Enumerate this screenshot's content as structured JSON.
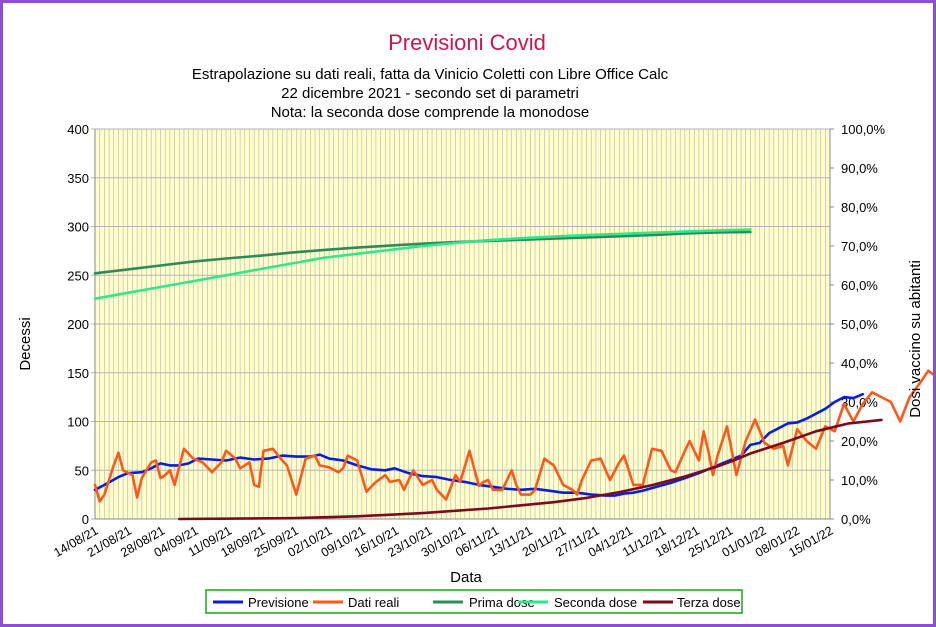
{
  "colors": {
    "frame": "#8b4fd1",
    "plot_bg": "#ffffcc",
    "grid": "#b3b3b3",
    "title": "#c8184f",
    "legend_border": "#1ba51b"
  },
  "chart_data": {
    "type": "line",
    "title": "Previsioni Covid",
    "subtitle_lines": [
      "Estrapolazione su dati reali, fatta da Vinicio Coletti con Libre Office Calc",
      "22 dicembre 2021 - secondo set di parametri",
      "Nota: la seconda dose comprende la monodose"
    ],
    "xlabel": "Data",
    "ylabel": "Decessi",
    "y2label": "Dosi vaccino su abitanti",
    "ylim": [
      0,
      400
    ],
    "y2lim": [
      0,
      100
    ],
    "yticks": [
      "0",
      "50",
      "100",
      "150",
      "200",
      "250",
      "300",
      "350",
      "400"
    ],
    "y2ticks": [
      "0,0%",
      "10,0%",
      "20,0%",
      "30,0%",
      "40,0%",
      "50,0%",
      "60,0%",
      "70,0%",
      "80,0%",
      "90,0%",
      "100,0%"
    ],
    "x_start": "2021-08-14",
    "x_end": "2022-01-18",
    "xticks": [
      "14/08/21",
      "21/08/21",
      "28/08/21",
      "04/09/21",
      "11/09/21",
      "18/09/21",
      "25/09/21",
      "02/10/21",
      "09/10/21",
      "16/10/21",
      "23/10/21",
      "30/10/21",
      "06/11/21",
      "13/11/21",
      "20/11/21",
      "27/11/21",
      "04/12/21",
      "11/12/21",
      "18/12/21",
      "25/12/21",
      "01/01/22",
      "08/01/22",
      "15/01/22"
    ],
    "grid": true,
    "legend_position": "bottom",
    "series": [
      {
        "name": "Previsione",
        "color": "#0a1ed6",
        "axis": "left",
        "points": [
          [
            "2021-08-14",
            30
          ],
          [
            "2021-08-16",
            35
          ],
          [
            "2021-08-19",
            43
          ],
          [
            "2021-08-21",
            47
          ],
          [
            "2021-08-24",
            48
          ],
          [
            "2021-08-26",
            52
          ],
          [
            "2021-08-28",
            57
          ],
          [
            "2021-08-30",
            55
          ],
          [
            "2021-09-01",
            55
          ],
          [
            "2021-09-03",
            57
          ],
          [
            "2021-09-05",
            62
          ],
          [
            "2021-09-08",
            61
          ],
          [
            "2021-09-11",
            60
          ],
          [
            "2021-09-14",
            63
          ],
          [
            "2021-09-17",
            61
          ],
          [
            "2021-09-20",
            62
          ],
          [
            "2021-09-23",
            65
          ],
          [
            "2021-09-26",
            64
          ],
          [
            "2021-09-29",
            64
          ],
          [
            "2021-10-01",
            66
          ],
          [
            "2021-10-03",
            62
          ],
          [
            "2021-10-06",
            60
          ],
          [
            "2021-10-09",
            55
          ],
          [
            "2021-10-12",
            51
          ],
          [
            "2021-10-15",
            50
          ],
          [
            "2021-10-17",
            52
          ],
          [
            "2021-10-20",
            47
          ],
          [
            "2021-10-23",
            44
          ],
          [
            "2021-10-26",
            43
          ],
          [
            "2021-10-29",
            40
          ],
          [
            "2021-11-01",
            38
          ],
          [
            "2021-11-04",
            35
          ],
          [
            "2021-11-07",
            33
          ],
          [
            "2021-11-10",
            31
          ],
          [
            "2021-11-13",
            30
          ],
          [
            "2021-11-16",
            31
          ],
          [
            "2021-11-19",
            29
          ],
          [
            "2021-11-22",
            27
          ],
          [
            "2021-11-25",
            27
          ],
          [
            "2021-11-28",
            25
          ],
          [
            "2021-12-01",
            24
          ],
          [
            "2021-12-03",
            24
          ],
          [
            "2021-12-05",
            26
          ],
          [
            "2021-12-07",
            27
          ],
          [
            "2021-12-09",
            29
          ],
          [
            "2021-12-12",
            33
          ],
          [
            "2021-12-15",
            37
          ],
          [
            "2021-12-18",
            42
          ],
          [
            "2021-12-21",
            47
          ],
          [
            "2021-12-24",
            53
          ],
          [
            "2021-12-27",
            59
          ],
          [
            "2021-12-30",
            65
          ],
          [
            "2022-01-01",
            76
          ],
          [
            "2022-01-03",
            78
          ],
          [
            "2022-01-05",
            88
          ],
          [
            "2022-01-07",
            93
          ],
          [
            "2022-01-09",
            98
          ],
          [
            "2022-01-11",
            99
          ],
          [
            "2022-01-13",
            103
          ],
          [
            "2022-01-15",
            108
          ],
          [
            "2022-01-17",
            113
          ],
          [
            "2022-01-19",
            120
          ],
          [
            "2022-01-21",
            125
          ],
          [
            "2022-01-23",
            124
          ],
          [
            "2022-01-25",
            128
          ]
        ]
      },
      {
        "name": "Dati reali",
        "color": "#ff5a19",
        "axis": "left",
        "points": [
          [
            "2021-08-14",
            35
          ],
          [
            "2021-08-15",
            18
          ],
          [
            "2021-08-16",
            25
          ],
          [
            "2021-08-18",
            55
          ],
          [
            "2021-08-19",
            68
          ],
          [
            "2021-08-20",
            50
          ],
          [
            "2021-08-22",
            45
          ],
          [
            "2021-08-23",
            22
          ],
          [
            "2021-08-24",
            42
          ],
          [
            "2021-08-26",
            58
          ],
          [
            "2021-08-27",
            60
          ],
          [
            "2021-08-28",
            42
          ],
          [
            "2021-08-29",
            45
          ],
          [
            "2021-08-30",
            50
          ],
          [
            "2021-08-31",
            35
          ],
          [
            "2021-09-02",
            72
          ],
          [
            "2021-09-04",
            62
          ],
          [
            "2021-09-06",
            58
          ],
          [
            "2021-09-08",
            48
          ],
          [
            "2021-09-10",
            58
          ],
          [
            "2021-09-11",
            70
          ],
          [
            "2021-09-13",
            62
          ],
          [
            "2021-09-14",
            52
          ],
          [
            "2021-09-16",
            58
          ],
          [
            "2021-09-17",
            35
          ],
          [
            "2021-09-18",
            33
          ],
          [
            "2021-09-19",
            70
          ],
          [
            "2021-09-21",
            72
          ],
          [
            "2021-09-23",
            60
          ],
          [
            "2021-09-24",
            55
          ],
          [
            "2021-09-26",
            25
          ],
          [
            "2021-09-28",
            62
          ],
          [
            "2021-09-30",
            65
          ],
          [
            "2021-10-01",
            55
          ],
          [
            "2021-10-03",
            53
          ],
          [
            "2021-10-05",
            48
          ],
          [
            "2021-10-06",
            52
          ],
          [
            "2021-10-07",
            65
          ],
          [
            "2021-10-09",
            60
          ],
          [
            "2021-10-11",
            28
          ],
          [
            "2021-10-13",
            38
          ],
          [
            "2021-10-15",
            45
          ],
          [
            "2021-10-16",
            38
          ],
          [
            "2021-10-18",
            40
          ],
          [
            "2021-10-19",
            30
          ],
          [
            "2021-10-21",
            50
          ],
          [
            "2021-10-23",
            35
          ],
          [
            "2021-10-25",
            40
          ],
          [
            "2021-10-26",
            30
          ],
          [
            "2021-10-28",
            20
          ],
          [
            "2021-10-30",
            45
          ],
          [
            "2021-10-31",
            38
          ],
          [
            "2021-11-02",
            70
          ],
          [
            "2021-11-04",
            34
          ],
          [
            "2021-11-05",
            38
          ],
          [
            "2021-11-06",
            40
          ],
          [
            "2021-11-07",
            30
          ],
          [
            "2021-11-09",
            30
          ],
          [
            "2021-11-11",
            50
          ],
          [
            "2021-11-12",
            35
          ],
          [
            "2021-11-13",
            25
          ],
          [
            "2021-11-15",
            25
          ],
          [
            "2021-11-16",
            30
          ],
          [
            "2021-11-18",
            62
          ],
          [
            "2021-11-20",
            55
          ],
          [
            "2021-11-22",
            35
          ],
          [
            "2021-11-24",
            30
          ],
          [
            "2021-11-25",
            25
          ],
          [
            "2021-11-26",
            40
          ],
          [
            "2021-11-28",
            60
          ],
          [
            "2021-11-30",
            62
          ],
          [
            "2021-12-02",
            40
          ],
          [
            "2021-12-04",
            58
          ],
          [
            "2021-12-05",
            65
          ],
          [
            "2021-12-07",
            35
          ],
          [
            "2021-12-09",
            35
          ],
          [
            "2021-12-11",
            72
          ],
          [
            "2021-12-13",
            70
          ],
          [
            "2021-12-15",
            50
          ],
          [
            "2021-12-16",
            48
          ],
          [
            "2021-12-18",
            70
          ],
          [
            "2021-12-19",
            80
          ],
          [
            "2021-12-21",
            60
          ],
          [
            "2021-12-22",
            90
          ],
          [
            "2021-12-23",
            70
          ],
          [
            "2021-12-24",
            45
          ],
          [
            "2021-12-25",
            65
          ],
          [
            "2021-12-27",
            95
          ],
          [
            "2021-12-29",
            45
          ],
          [
            "2021-12-31",
            80
          ],
          [
            "2022-01-02",
            102
          ],
          [
            "2022-01-04",
            78
          ],
          [
            "2022-01-06",
            72
          ],
          [
            "2022-01-08",
            75
          ],
          [
            "2022-01-09",
            55
          ],
          [
            "2022-01-11",
            92
          ],
          [
            "2022-01-13",
            80
          ],
          [
            "2022-01-15",
            72
          ],
          [
            "2022-01-17",
            95
          ],
          [
            "2022-01-19",
            90
          ],
          [
            "2022-01-21",
            118
          ],
          [
            "2022-01-23",
            100
          ],
          [
            "2022-01-25",
            118
          ],
          [
            "2022-01-27",
            130
          ],
          [
            "2022-01-29",
            125
          ],
          [
            "2022-01-31",
            120
          ],
          [
            "2022-02-02",
            100
          ],
          [
            "2022-02-04",
            125
          ],
          [
            "2022-02-06",
            138
          ],
          [
            "2022-02-08",
            152
          ],
          [
            "2022-02-10",
            145
          ]
        ]
      },
      {
        "name": "Prima dose",
        "color": "#2e8b57",
        "axis": "right",
        "points": [
          [
            "2021-08-14",
            63
          ],
          [
            "2021-08-21",
            64
          ],
          [
            "2021-08-28",
            65
          ],
          [
            "2021-09-04",
            66
          ],
          [
            "2021-09-11",
            66.8
          ],
          [
            "2021-09-18",
            67.5
          ],
          [
            "2021-09-25",
            68.3
          ],
          [
            "2021-10-02",
            69
          ],
          [
            "2021-10-09",
            69.6
          ],
          [
            "2021-10-16",
            70.1
          ],
          [
            "2021-10-23",
            70.6
          ],
          [
            "2021-10-30",
            71
          ],
          [
            "2021-11-06",
            71.3
          ],
          [
            "2021-11-13",
            71.6
          ],
          [
            "2021-11-20",
            71.9
          ],
          [
            "2021-11-27",
            72.2
          ],
          [
            "2021-12-04",
            72.5
          ],
          [
            "2021-12-11",
            72.8
          ],
          [
            "2021-12-18",
            73.2
          ],
          [
            "2021-12-25",
            73.5
          ],
          [
            "2022-01-01",
            73.6
          ]
        ]
      },
      {
        "name": "Seconda dose",
        "color": "#33e68a",
        "axis": "right",
        "points": [
          [
            "2021-08-14",
            56.5
          ],
          [
            "2021-08-21",
            58
          ],
          [
            "2021-08-28",
            59.5
          ],
          [
            "2021-09-04",
            61
          ],
          [
            "2021-09-11",
            62.5
          ],
          [
            "2021-09-18",
            64
          ],
          [
            "2021-09-25",
            65.5
          ],
          [
            "2021-10-02",
            67
          ],
          [
            "2021-10-09",
            68
          ],
          [
            "2021-10-16",
            69
          ],
          [
            "2021-10-23",
            70
          ],
          [
            "2021-10-30",
            70.8
          ],
          [
            "2021-11-06",
            71.5
          ],
          [
            "2021-11-13",
            72
          ],
          [
            "2021-11-20",
            72.4
          ],
          [
            "2021-11-27",
            72.8
          ],
          [
            "2021-12-04",
            73.1
          ],
          [
            "2021-12-11",
            73.4
          ],
          [
            "2021-12-18",
            73.7
          ],
          [
            "2021-12-25",
            74
          ],
          [
            "2022-01-01",
            74.2
          ]
        ]
      },
      {
        "name": "Terza dose",
        "color": "#7b0a1e",
        "axis": "right",
        "points": [
          [
            "2021-09-01",
            0
          ],
          [
            "2021-09-25",
            0.2
          ],
          [
            "2021-10-09",
            0.7
          ],
          [
            "2021-10-23",
            1.5
          ],
          [
            "2021-11-06",
            2.7
          ],
          [
            "2021-11-20",
            4.3
          ],
          [
            "2021-11-27",
            5.4
          ],
          [
            "2021-12-04",
            6.9
          ],
          [
            "2021-12-11",
            8.7
          ],
          [
            "2021-12-18",
            10.9
          ],
          [
            "2021-12-25",
            13.5
          ],
          [
            "2021-12-28",
            14.8
          ],
          [
            "2022-01-01",
            16.8
          ],
          [
            "2022-01-08",
            19.5
          ],
          [
            "2022-01-15",
            22.5
          ],
          [
            "2022-01-22",
            24.5
          ],
          [
            "2022-01-29",
            25.4
          ]
        ]
      }
    ]
  }
}
